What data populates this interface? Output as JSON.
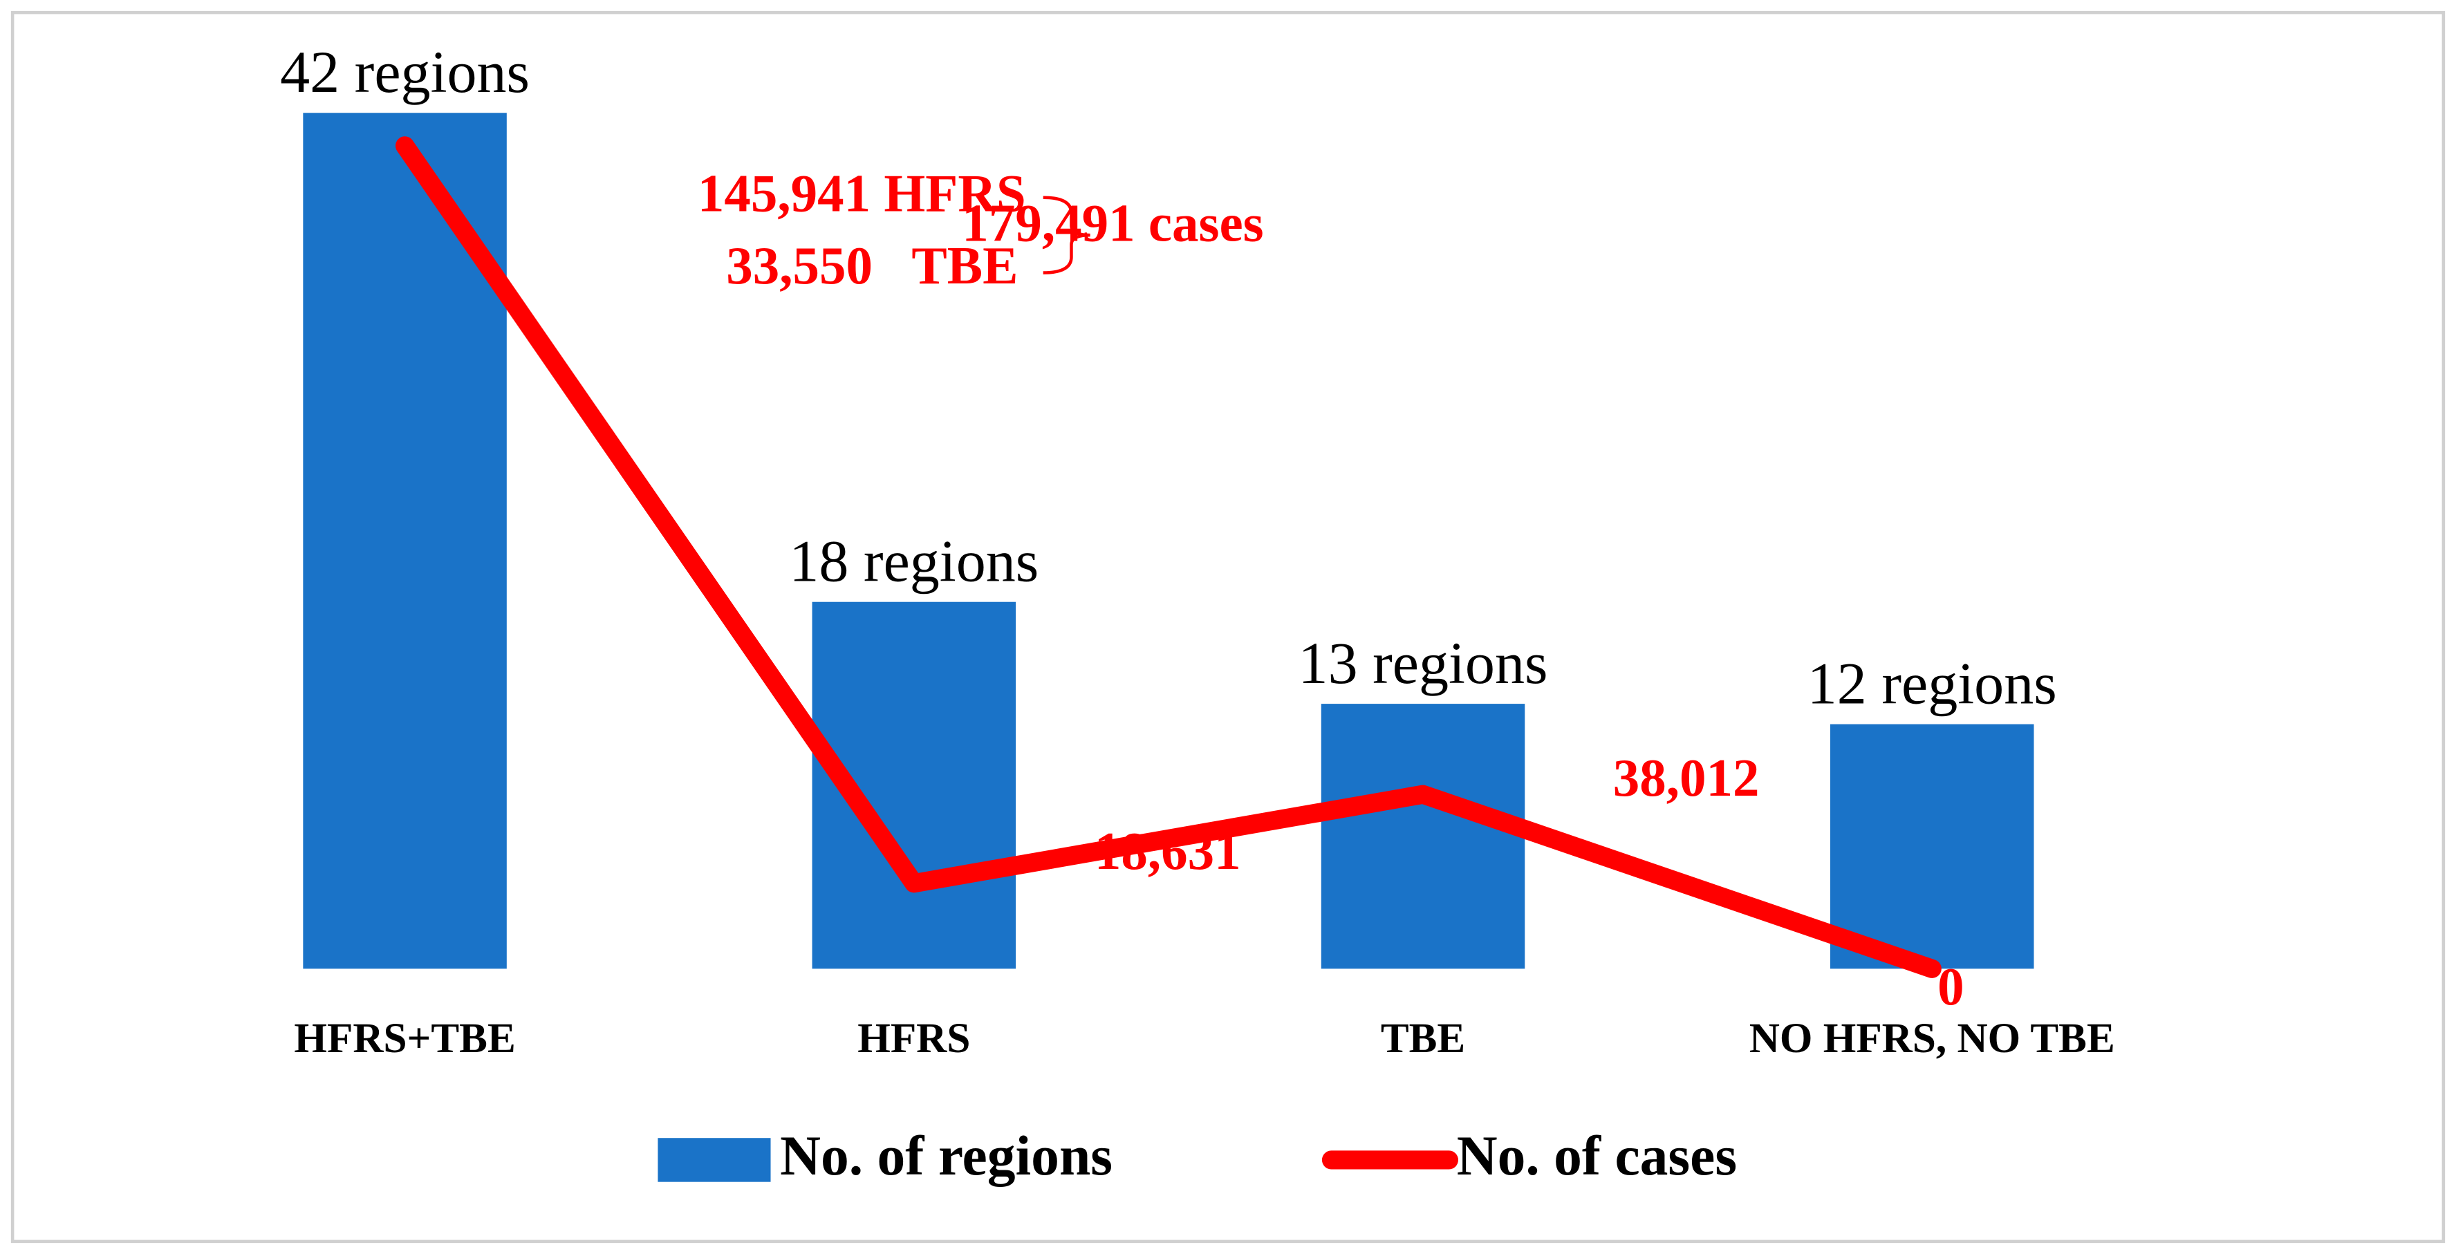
{
  "chart_data": {
    "type": "bar",
    "categories": [
      "HFRS+TBE",
      "HFRS",
      "TBE",
      "NO HFRS, NO TBE"
    ],
    "series": [
      {
        "name": "No. of regions",
        "color": "#1a73c8",
        "values": [
          42,
          18,
          13,
          12
        ],
        "value_labels": [
          "42 regions",
          "18 regions",
          "13 regions",
          "12 regions"
        ]
      },
      {
        "name": "No. of cases",
        "color": "#ff0000",
        "type": "line",
        "axis": "y2",
        "values": [
          179491,
          18631,
          38012,
          0
        ],
        "value_labels": [
          "179,491 cases",
          "18,631",
          "38,012",
          "0"
        ]
      }
    ],
    "annotations": [
      "145,941 HFRS",
      "33,550   TBE"
    ],
    "ylim": [
      0,
      45
    ],
    "y2lim": [
      0,
      200000
    ],
    "grid": false,
    "legend": "bottom"
  }
}
